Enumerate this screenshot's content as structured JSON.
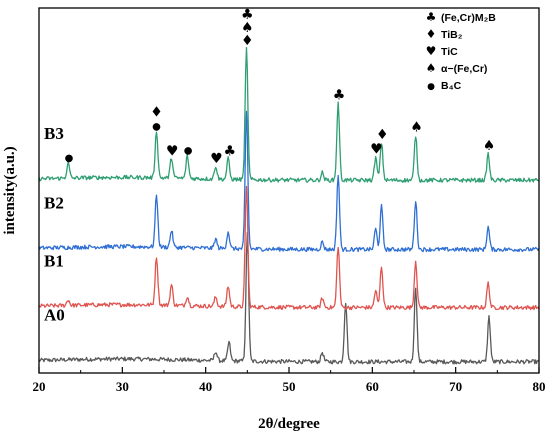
{
  "chart_data": {
    "type": "line",
    "xlabel": "2θ/degree",
    "ylabel": "intensity(a.u.)",
    "xlim": [
      20,
      80
    ],
    "x_ticks": [
      "20",
      "30",
      "40",
      "50",
      "60",
      "70",
      "80"
    ],
    "grid": false,
    "legend_position": "top-right",
    "series": [
      {
        "name": "A0",
        "color": "#595959",
        "baseline": 0.6,
        "peaks": [
          {
            "x": 41.2,
            "h": 0.5
          },
          {
            "x": 42.8,
            "h": 1.0
          },
          {
            "x": 45.0,
            "h": 6.8
          },
          {
            "x": 54.0,
            "h": 0.5
          },
          {
            "x": 56.8,
            "h": 3.2
          },
          {
            "x": 65.2,
            "h": 4.0
          },
          {
            "x": 74.0,
            "h": 2.4
          }
        ]
      },
      {
        "name": "B1",
        "color": "#e0544f",
        "baseline": 3.5,
        "peaks": [
          {
            "x": 23.5,
            "h": 0.3
          },
          {
            "x": 34.1,
            "h": 2.6
          },
          {
            "x": 35.9,
            "h": 1.1
          },
          {
            "x": 37.8,
            "h": 0.5
          },
          {
            "x": 41.2,
            "h": 0.5
          },
          {
            "x": 42.7,
            "h": 1.1
          },
          {
            "x": 44.9,
            "h": 6.5
          },
          {
            "x": 54.0,
            "h": 0.5
          },
          {
            "x": 55.9,
            "h": 3.3
          },
          {
            "x": 60.4,
            "h": 0.9
          },
          {
            "x": 61.1,
            "h": 2.2
          },
          {
            "x": 65.2,
            "h": 2.5
          },
          {
            "x": 73.9,
            "h": 1.3
          }
        ]
      },
      {
        "name": "B2",
        "color": "#2f6fd4",
        "baseline": 6.6,
        "peaks": [
          {
            "x": 34.1,
            "h": 2.8
          },
          {
            "x": 35.9,
            "h": 0.9
          },
          {
            "x": 41.2,
            "h": 0.5
          },
          {
            "x": 42.7,
            "h": 0.9
          },
          {
            "x": 44.9,
            "h": 7.3
          },
          {
            "x": 54.0,
            "h": 0.4
          },
          {
            "x": 55.9,
            "h": 4.0
          },
          {
            "x": 60.4,
            "h": 1.1
          },
          {
            "x": 61.1,
            "h": 2.3
          },
          {
            "x": 65.2,
            "h": 2.6
          },
          {
            "x": 73.9,
            "h": 1.2
          }
        ]
      },
      {
        "name": "B3",
        "color": "#2f9e72",
        "baseline": 10.3,
        "peaks": [
          {
            "x": 23.5,
            "h": 0.8
          },
          {
            "x": 34.1,
            "h": 2.5
          },
          {
            "x": 35.9,
            "h": 1.1
          },
          {
            "x": 37.8,
            "h": 1.2
          },
          {
            "x": 41.2,
            "h": 0.7
          },
          {
            "x": 42.7,
            "h": 1.1
          },
          {
            "x": 44.9,
            "h": 7.0
          },
          {
            "x": 54.0,
            "h": 0.4
          },
          {
            "x": 55.9,
            "h": 4.1
          },
          {
            "x": 60.4,
            "h": 1.2
          },
          {
            "x": 61.1,
            "h": 2.0
          },
          {
            "x": 65.2,
            "h": 2.4
          },
          {
            "x": 73.9,
            "h": 1.4
          }
        ]
      }
    ],
    "phase_markers": [
      {
        "x": 23.6,
        "symbols": [
          "●"
        ]
      },
      {
        "x": 34.1,
        "symbols": [
          "●",
          "♦"
        ]
      },
      {
        "x": 36.0,
        "symbols": [
          "♥"
        ]
      },
      {
        "x": 37.9,
        "symbols": [
          "●"
        ]
      },
      {
        "x": 41.3,
        "symbols": [
          "♥"
        ]
      },
      {
        "x": 42.9,
        "symbols": [
          "♣"
        ]
      },
      {
        "x": 45.0,
        "symbols": [
          "♦",
          "♠",
          "♣"
        ]
      },
      {
        "x": 56.0,
        "symbols": [
          "♣"
        ]
      },
      {
        "x": 60.5,
        "symbols": [
          "♥"
        ]
      },
      {
        "x": 61.2,
        "symbols": [
          "♦"
        ]
      },
      {
        "x": 65.3,
        "symbols": [
          "♠"
        ]
      },
      {
        "x": 74.0,
        "symbols": [
          "♠"
        ]
      }
    ],
    "legend": [
      {
        "symbol": "♣",
        "text": "(Fe,Cr)M₂B"
      },
      {
        "symbol": "♦",
        "text": "TiB₂"
      },
      {
        "symbol": "♥",
        "text": "TiC"
      },
      {
        "symbol": "♠",
        "text": "α−(Fe,Cr)"
      },
      {
        "symbol": "●",
        "text": "B₄C"
      }
    ]
  }
}
